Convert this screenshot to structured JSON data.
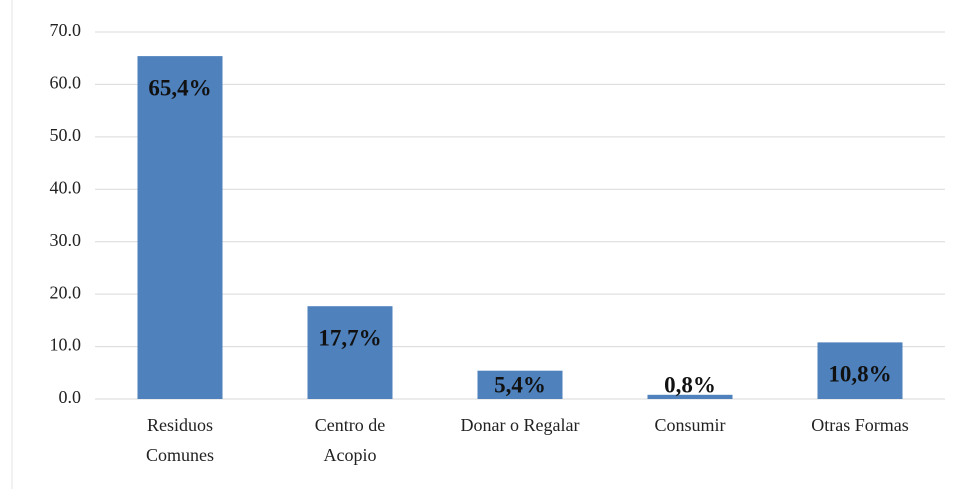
{
  "chart_data": {
    "type": "bar",
    "categories": [
      [
        "Residuos",
        "Comunes"
      ],
      [
        "Centro de",
        "Acopio"
      ],
      [
        "Donar o Regalar"
      ],
      [
        "Consumir"
      ],
      [
        "Otras Formas"
      ]
    ],
    "values": [
      65.4,
      17.7,
      5.4,
      0.8,
      10.8
    ],
    "value_labels": [
      "65,4%",
      "17,7%",
      "5,4%",
      "0,8%",
      "10,8%"
    ],
    "color": "#4f81bd",
    "ylim": [
      0,
      70
    ],
    "yticks": [
      {
        "value": 0,
        "label": "0.0"
      },
      {
        "value": 10,
        "label": "10.0"
      },
      {
        "value": 20,
        "label": "20.0"
      },
      {
        "value": 30,
        "label": "30.0"
      },
      {
        "value": 40,
        "label": "40.0"
      },
      {
        "value": 50,
        "label": "50.0"
      },
      {
        "value": 60,
        "label": "60.0"
      },
      {
        "value": 70,
        "label": "70.0"
      }
    ],
    "grid": true
  }
}
